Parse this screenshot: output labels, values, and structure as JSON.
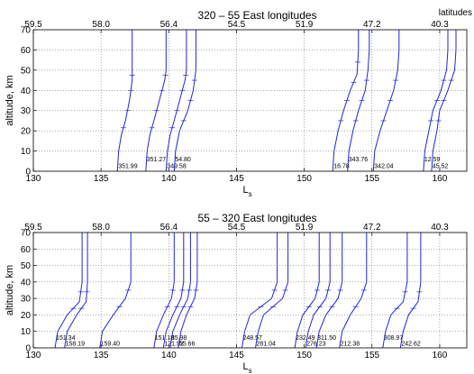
{
  "chart_data": [
    {
      "type": "line",
      "title": "320 – 55 East longitudes",
      "xlabel": "Ls",
      "ylabel": "altitude, km",
      "xlim": [
        130,
        162
      ],
      "ylim": [
        0,
        70
      ],
      "xticks": [
        130,
        135,
        140,
        145,
        150,
        155,
        160
      ],
      "yticks": [
        0,
        10,
        20,
        30,
        40,
        50,
        60,
        70
      ],
      "top_axis_label": "latitudes",
      "top_ticks": [
        {
          "ls": 130.0,
          "label": "59.5"
        },
        {
          "ls": 135.0,
          "label": "58.0"
        },
        {
          "ls": 140.0,
          "label": "56.4"
        },
        {
          "ls": 145.0,
          "label": "54.5"
        },
        {
          "ls": 150.0,
          "label": "51.9"
        },
        {
          "ls": 155.0,
          "label": "47.2"
        },
        {
          "ls": 160.0,
          "label": "40.3"
        }
      ],
      "grid": true,
      "profiles": [
        {
          "x": [
            136.2,
            136.3,
            136.5,
            136.8,
            137.1,
            137.3,
            137.3,
            137.3,
            137.3
          ],
          "y": [
            0,
            10,
            18,
            25,
            35,
            45,
            50,
            60,
            70
          ],
          "label": "351.99"
        },
        {
          "x": [
            138.3,
            138.4,
            138.6,
            138.9,
            139.3,
            139.7,
            139.8,
            139.8,
            139.8
          ],
          "y": [
            0,
            10,
            18,
            25,
            35,
            45,
            50,
            60,
            70
          ],
          "label": "351.27"
        },
        {
          "x": [
            139.8,
            139.9,
            140.1,
            140.4,
            140.8,
            141.2,
            141.3,
            141.3,
            141.3
          ],
          "y": [
            0,
            10,
            18,
            25,
            35,
            45,
            50,
            60,
            70
          ],
          "label": "349.58"
        },
        {
          "x": [
            140.4,
            140.5,
            140.8,
            141.4,
            141.8,
            142.0,
            142.0,
            142.0
          ],
          "y": [
            0,
            10,
            20,
            30,
            40,
            50,
            60,
            70
          ],
          "label": "54.80"
        },
        {
          "x": [
            152.1,
            152.2,
            152.5,
            152.9,
            153.4,
            153.9,
            154.0,
            154.0
          ],
          "y": [
            0,
            10,
            20,
            30,
            40,
            48,
            60,
            70
          ],
          "label": "16.78"
        },
        {
          "x": [
            153.2,
            153.3,
            153.6,
            154.0,
            154.5,
            154.7,
            154.8,
            154.8
          ],
          "y": [
            0,
            10,
            20,
            30,
            40,
            50,
            60,
            70
          ],
          "label": "343.76"
        },
        {
          "x": [
            155.1,
            155.2,
            155.6,
            156.1,
            156.6,
            156.9,
            157.0,
            157.0
          ],
          "y": [
            0,
            10,
            20,
            30,
            40,
            50,
            60,
            70
          ],
          "label": "342.04"
        },
        {
          "x": [
            158.8,
            158.9,
            159.2,
            159.5,
            160.1,
            160.5,
            160.6,
            160.6
          ],
          "y": [
            0,
            10,
            20,
            30,
            40,
            50,
            60,
            70
          ],
          "label": "12.59"
        },
        {
          "x": [
            159.4,
            159.5,
            159.8,
            160.0,
            160.6,
            161.1,
            161.2,
            161.2
          ],
          "y": [
            0,
            10,
            20,
            30,
            40,
            50,
            60,
            70
          ],
          "label": "45.52"
        }
      ]
    },
    {
      "type": "line",
      "title": "55 – 320 East longitudes",
      "xlabel": "Ls",
      "ylabel": "altitude, km",
      "xlim": [
        130,
        162
      ],
      "ylim": [
        0,
        70
      ],
      "xticks": [
        130,
        135,
        140,
        145,
        150,
        155,
        160
      ],
      "yticks": [
        0,
        10,
        20,
        30,
        40,
        50,
        60,
        70
      ],
      "top_ticks": [
        {
          "ls": 130.0,
          "label": "59.5"
        },
        {
          "ls": 135.0,
          "label": "58.0"
        },
        {
          "ls": 140.0,
          "label": "56.4"
        },
        {
          "ls": 145.0,
          "label": "54.5"
        },
        {
          "ls": 150.0,
          "label": "51.9"
        },
        {
          "ls": 155.0,
          "label": "47.2"
        },
        {
          "ls": 160.0,
          "label": "40.3"
        }
      ],
      "grid": true,
      "profiles": [
        {
          "x": [
            132.3,
            132.5,
            133.2,
            133.9,
            134.0,
            134.0
          ],
          "y": [
            0,
            10,
            20,
            28,
            40,
            70
          ],
          "label": "158.19"
        },
        {
          "x": [
            131.6,
            131.8,
            132.5,
            133.4,
            133.6,
            133.6
          ],
          "y": [
            0,
            10,
            20,
            28,
            40,
            70
          ],
          "label": "151.34"
        },
        {
          "x": [
            134.9,
            135.1,
            135.9,
            136.8,
            137.2,
            137.2
          ],
          "y": [
            0,
            10,
            20,
            30,
            40,
            70
          ],
          "label": "159.40"
        },
        {
          "x": [
            138.9,
            139.1,
            139.6,
            140.2,
            140.4,
            140.4
          ],
          "y": [
            0,
            10,
            20,
            30,
            40,
            70
          ],
          "label": "151.18"
        },
        {
          "x": [
            139.6,
            139.8,
            140.3,
            140.9,
            141.1,
            141.1
          ],
          "y": [
            0,
            10,
            20,
            30,
            40,
            70
          ],
          "label": "121.92"
        },
        {
          "x": [
            140.1,
            140.3,
            140.8,
            141.4,
            141.6,
            141.6
          ],
          "y": [
            0,
            10,
            20,
            30,
            40,
            70
          ],
          "label": "85.98"
        },
        {
          "x": [
            140.7,
            140.9,
            141.3,
            141.9,
            142.1,
            142.1
          ],
          "y": [
            0,
            10,
            20,
            30,
            40,
            70
          ],
          "label": "55.66"
        },
        {
          "x": [
            145.4,
            145.6,
            146.0,
            147.6,
            148.0,
            148.0
          ],
          "y": [
            0,
            10,
            20,
            30,
            40,
            70
          ],
          "label": "248.57"
        },
        {
          "x": [
            146.4,
            146.6,
            147.0,
            148.4,
            148.8,
            148.8
          ],
          "y": [
            0,
            10,
            20,
            30,
            40,
            70
          ],
          "label": "281.04"
        },
        {
          "x": [
            149.3,
            149.5,
            149.9,
            150.8,
            151.1,
            151.1
          ],
          "y": [
            0,
            10,
            20,
            30,
            40,
            70
          ],
          "label": "232.49"
        },
        {
          "x": [
            150.1,
            150.3,
            150.7,
            151.6,
            151.9,
            151.9
          ],
          "y": [
            0,
            10,
            20,
            30,
            40,
            70
          ],
          "label": "276.23"
        },
        {
          "x": [
            150.9,
            151.1,
            151.6,
            152.5,
            152.8,
            152.8
          ],
          "y": [
            0,
            10,
            20,
            30,
            40,
            70
          ],
          "label": "311.50"
        },
        {
          "x": [
            152.6,
            152.8,
            153.4,
            154.2,
            154.6,
            154.6
          ],
          "y": [
            0,
            10,
            20,
            30,
            40,
            70
          ],
          "label": "212.38"
        },
        {
          "x": [
            155.8,
            156.0,
            156.4,
            157.3,
            157.6,
            157.6
          ],
          "y": [
            0,
            10,
            20,
            28,
            40,
            70
          ],
          "label": "308.97"
        },
        {
          "x": [
            157.1,
            157.3,
            157.7,
            158.4,
            158.6,
            158.6
          ],
          "y": [
            0,
            10,
            20,
            28,
            40,
            70
          ],
          "label": "242.62"
        }
      ]
    }
  ]
}
